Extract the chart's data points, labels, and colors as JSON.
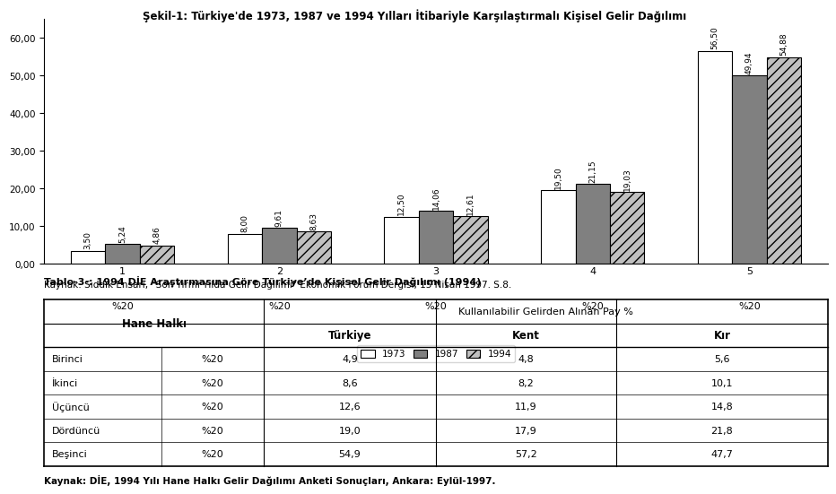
{
  "title": "Şekil-1: Türkiye'de 1973, 1987 ve 1994 Yılları İtibariyle Karşılaştırmalı Kişisel Gelir Dağılımı",
  "groups": [
    1,
    2,
    3,
    4,
    5
  ],
  "group_labels": [
    "%20",
    "%20",
    "%20",
    "%20",
    "%20"
  ],
  "series_1973": [
    3.5,
    8.0,
    12.5,
    19.5,
    56.5
  ],
  "series_1987": [
    5.24,
    9.61,
    14.06,
    21.15,
    49.94
  ],
  "series_1994": [
    4.86,
    8.63,
    12.61,
    19.03,
    54.88
  ],
  "bar_color_1973": "#ffffff",
  "bar_color_1987": "#808080",
  "bar_color_1994": "#c0c0c0",
  "bar_edgecolor": "#000000",
  "bar_hatch_1994": "///",
  "legend_labels": [
    "1973",
    "1987",
    "1994"
  ],
  "ylim": [
    0,
    65
  ],
  "yticks": [
    0,
    10,
    20,
    30,
    40,
    50,
    60
  ],
  "ytick_labels": [
    "0,00",
    "10,00",
    "20,00",
    "30,00",
    "40,00",
    "50,00",
    "60,00"
  ],
  "source_text": "Kaynak: Sıddık Ensari, “Son Yirmi Yılda Gelir Dağılımı” Ekonomik Forum Dergisi, 15 Nisan 1997. S.8.",
  "table_title": "Tablo-3-: 1994 DİE Araştırmasına Göre Türkiye’de Kişisel Gelir Dağılımı (1994)",
  "table_header_main": "Kullanılabilir Gelirden Alınan Pay %",
  "table_rows": [
    [
      "Birinci",
      "%20",
      "4,9",
      "4,8",
      "5,6"
    ],
    [
      "İkinci",
      "%20",
      "8,6",
      "8,2",
      "10,1"
    ],
    [
      "Üçüncü",
      "%20",
      "12,6",
      "11,9",
      "14,8"
    ],
    [
      "Dördüncü",
      "%20",
      "19,0",
      "17,9",
      "21,8"
    ],
    [
      "Beşinci",
      "%20",
      "54,9",
      "57,2",
      "47,7"
    ]
  ],
  "table_footnote": "Kaynak: DİE, 1994 Yılı Hane Halkı Gelir Dağılımı Anketi Sonuçları, Ankara: Eylül-1997.",
  "col_boundaries": [
    0.0,
    0.15,
    0.28,
    0.5,
    0.73,
    1.0
  ]
}
